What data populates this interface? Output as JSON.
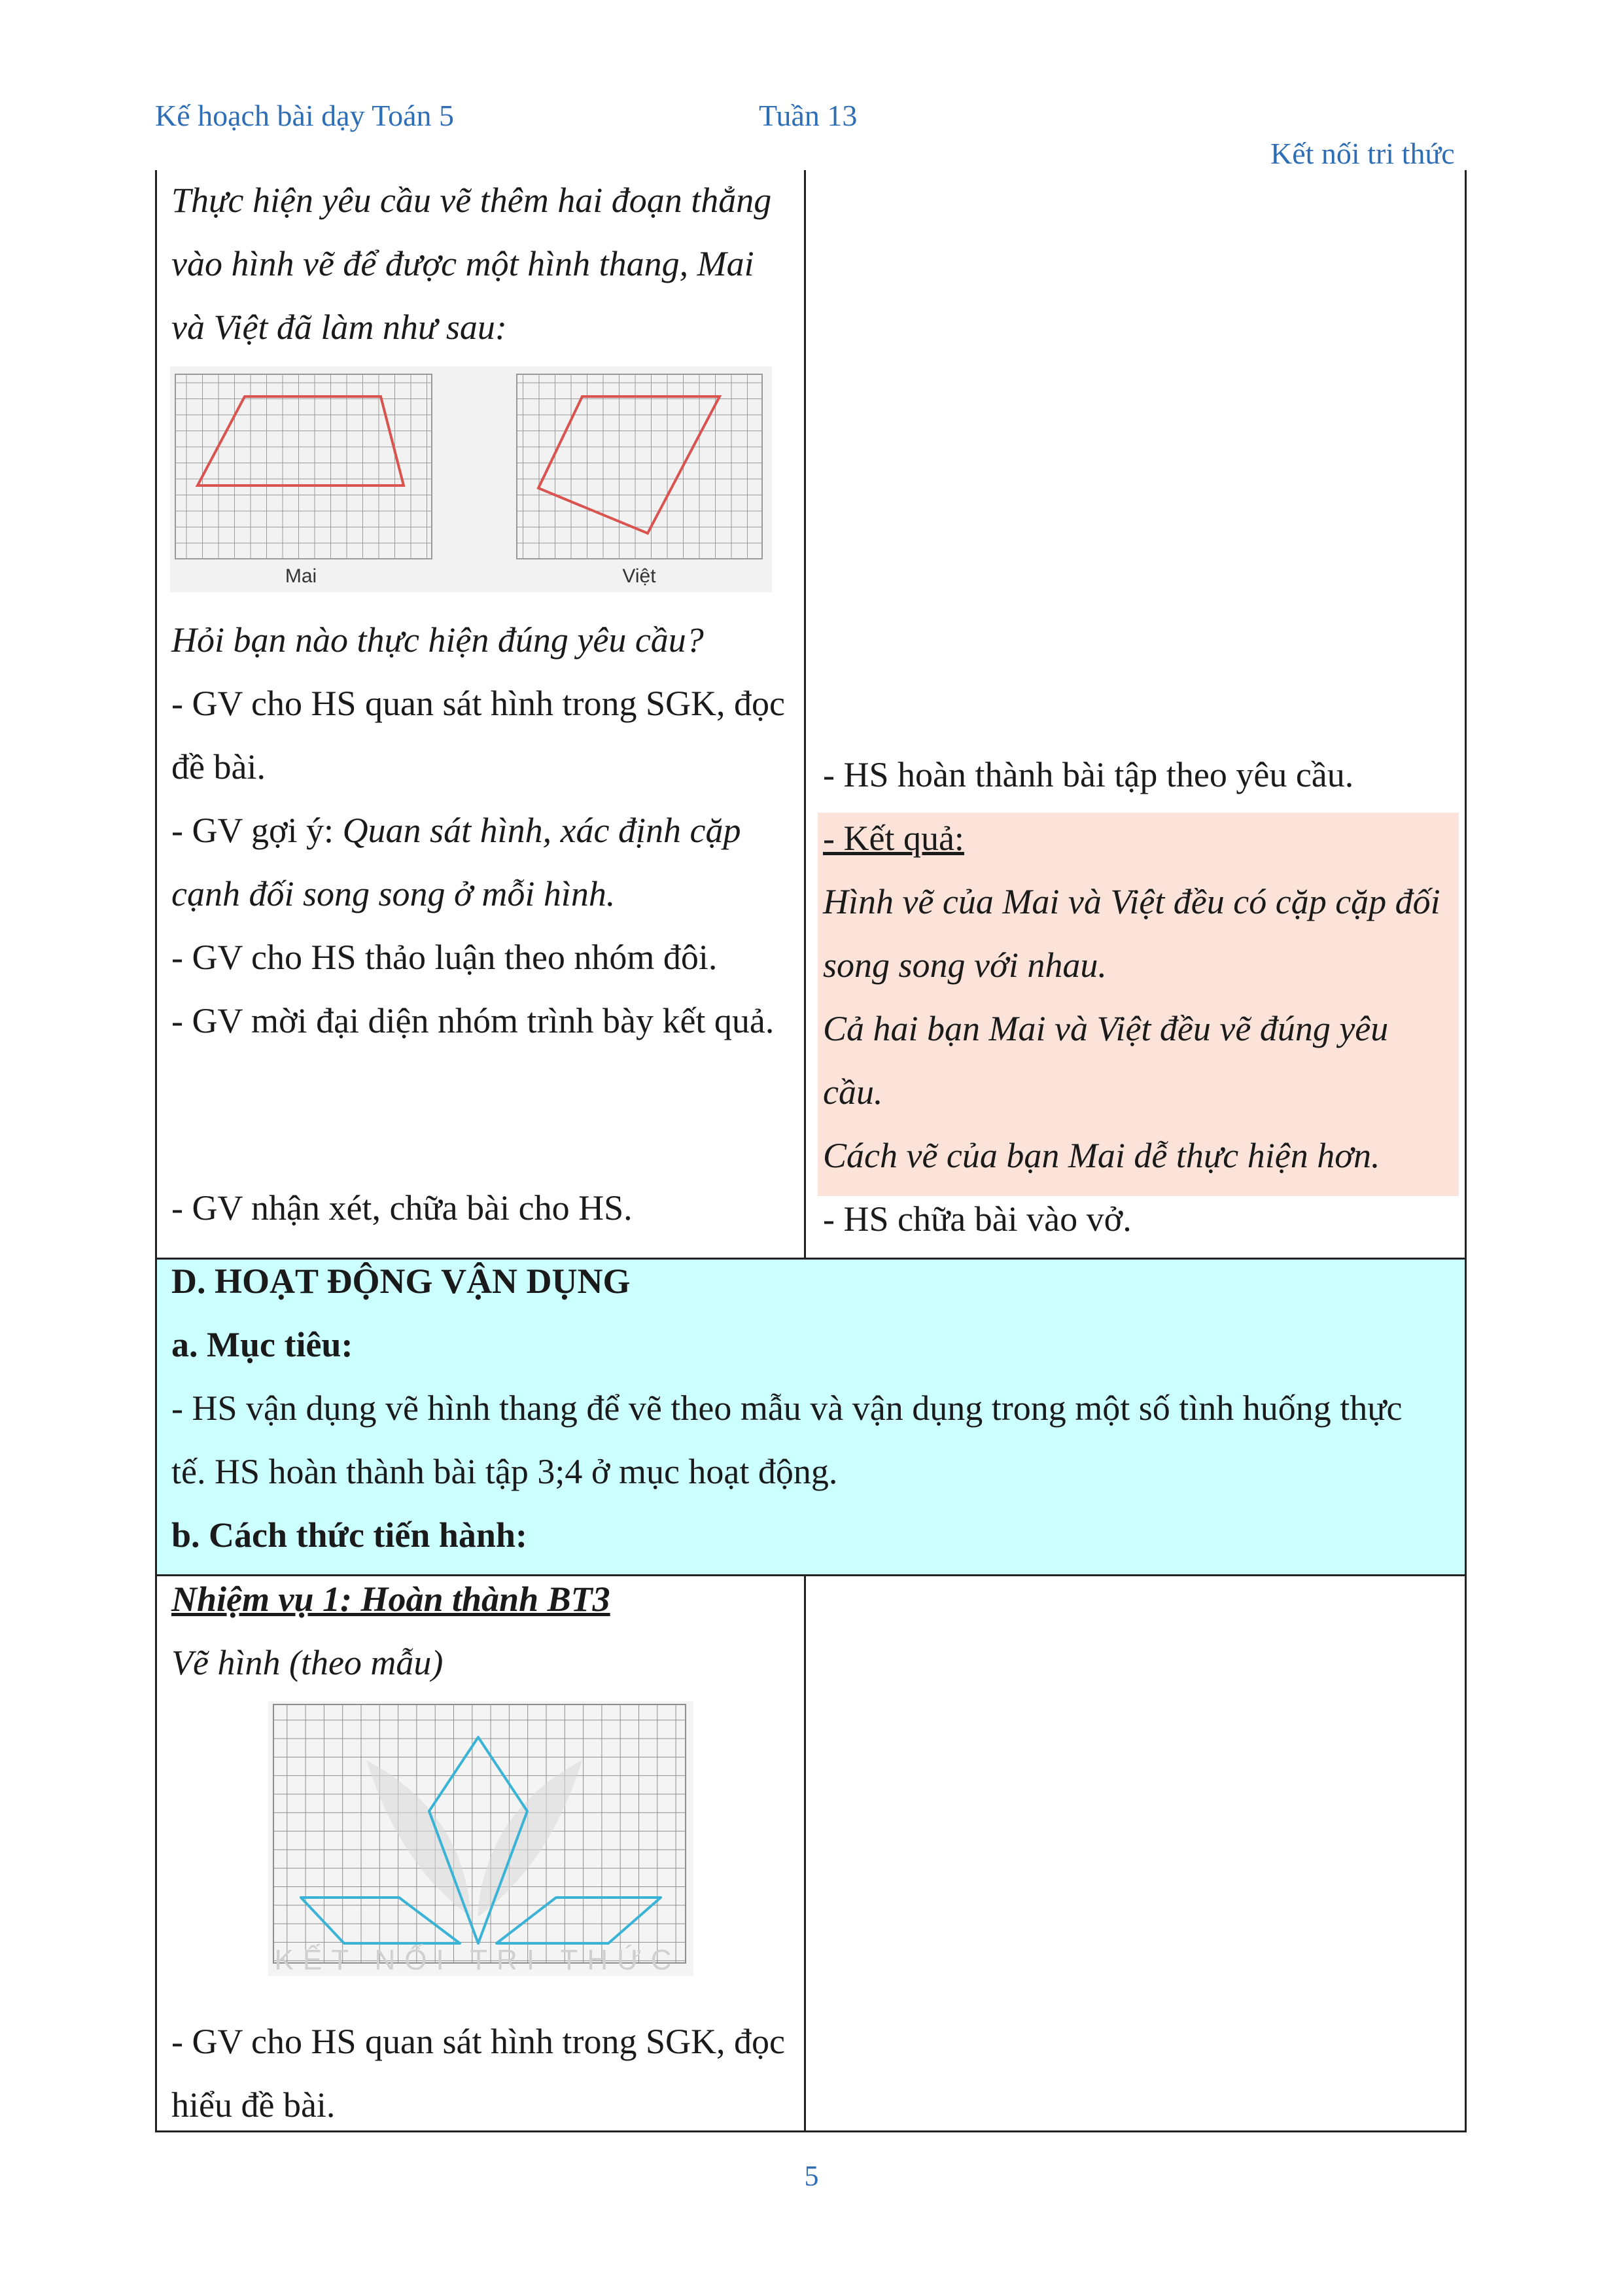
{
  "header": {
    "left": "Kế hoạch bài dạy Toán 5",
    "center": "Tuần 13",
    "right": "Kết nối tri thức"
  },
  "row1": {
    "left": {
      "prompt_lines": [
        "Thực hiện yêu cầu vẽ thêm hai đoạn thẳng",
        "vào hình vẽ để được một hình thang, Mai",
        "và Việt đã làm như sau:"
      ],
      "figure_labels": [
        "Mai",
        "Việt"
      ],
      "question": "Hỏi bạn nào thực hiện đúng yêu cầu?",
      "step1_line1": "- GV cho HS quan sát hình trong SGK, đọc",
      "step1_line2": "đề bài.",
      "hint_prefix": "- GV gợi ý: ",
      "hint_line1": "Quan sát hình, xác định cặp",
      "hint_line2": "cạnh đối song song ở mỗi hình.",
      "step2": "- GV cho HS thảo luận theo nhóm đôi.",
      "step3": "- GV mời đại diện nhóm trình bày kết quả.",
      "step4": "- GV nhận xét, chữa bài cho HS."
    },
    "right": {
      "complete": "- HS hoàn thành bài tập theo yêu cầu.",
      "result_heading": "- Kết quả:",
      "result_lines": [
        "Hình vẽ của Mai và Việt đều có cặp cặp đối",
        "song song với nhau.",
        "Cả hai bạn Mai và Việt đều vẽ đúng yêu",
        "cầu.",
        "Cách vẽ của bạn Mai dễ thực hiện hơn."
      ],
      "fix": "- HS chữa bài vào vở."
    }
  },
  "section_d": {
    "title": "D. HOẠT ĐỘNG VẬN DỤNG",
    "goal_heading": "a. Mục tiêu:",
    "goal_line1": "- HS vận dụng vẽ hình thang để vẽ theo mẫu và vận dụng trong một số tình huống thực",
    "goal_line2": "tế. HS hoàn thành bài tập 3;4 ở mục hoạt động.",
    "method_heading": "b. Cách thức tiến hành:"
  },
  "task1": {
    "heading": "Nhiệm vụ 1: Hoàn thành BT3",
    "instruction": "Vẽ hình (theo mẫu)",
    "watermark": "KẾT NỐI TRI THỨC",
    "step_line1": "- GV cho HS quan sát hình trong SGK, đọc",
    "step_line2": "hiểu đề bài."
  },
  "page_number": "5",
  "colors": {
    "header_blue": "#2f6eb5",
    "result_bg": "#fbe3d9",
    "section_bg": "#ccffff",
    "trapezoid_red": "#d9534f",
    "pattern_blue": "#3bb3d6"
  }
}
